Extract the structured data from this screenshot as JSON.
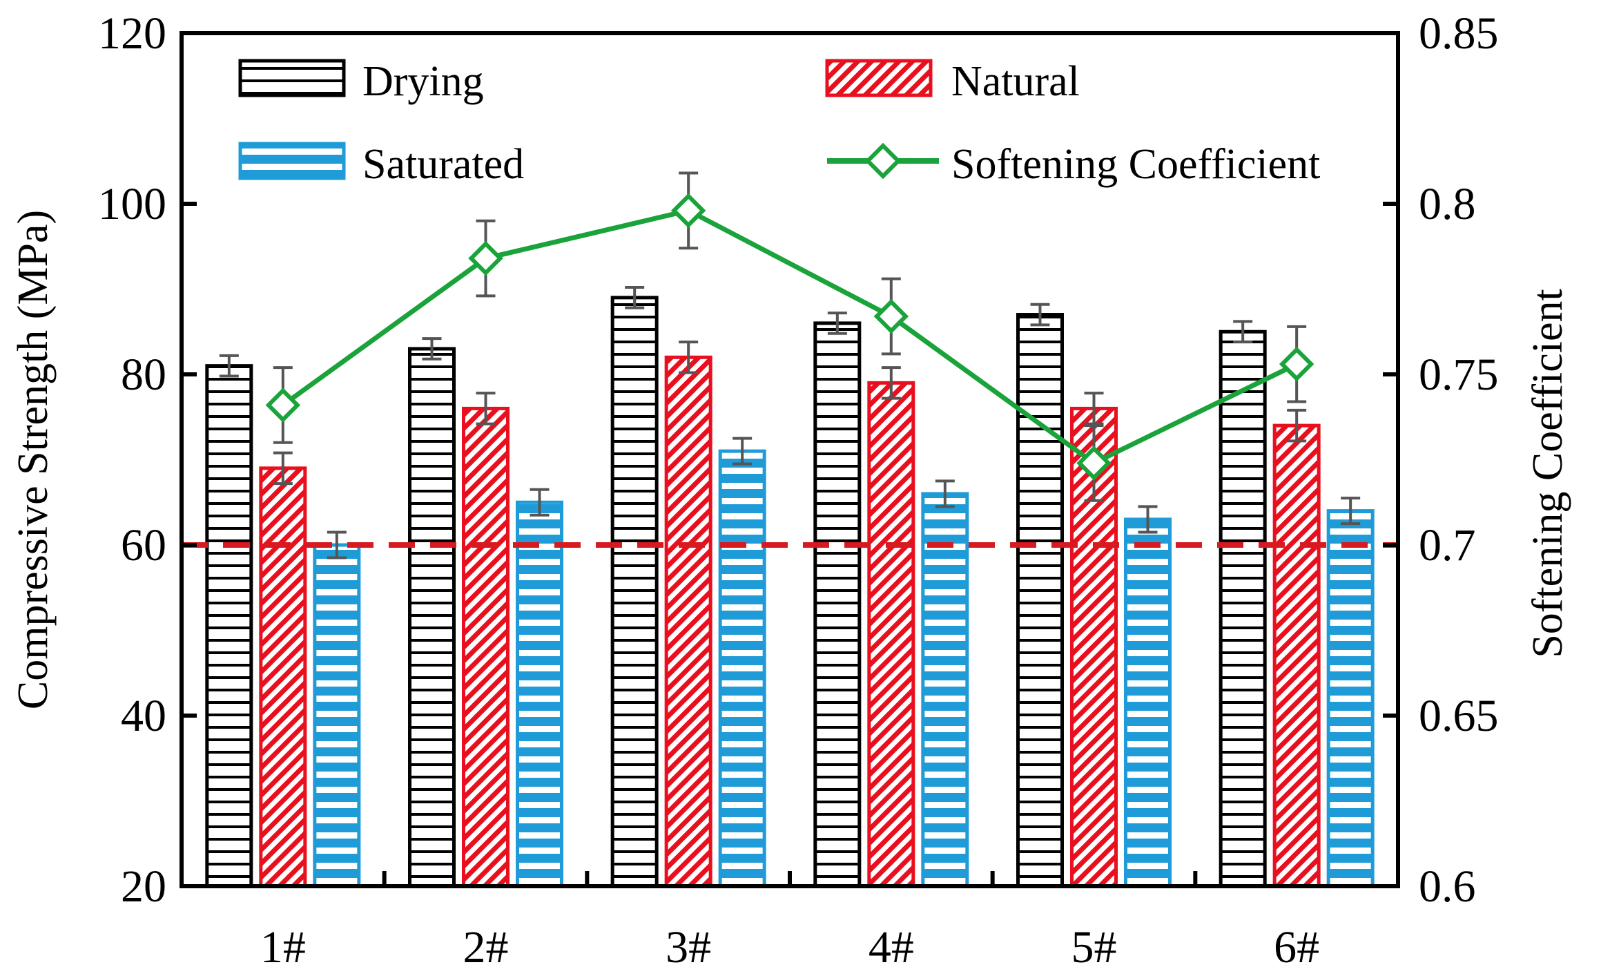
{
  "chart_data": {
    "type": "bar",
    "categories": [
      "1#",
      "2#",
      "3#",
      "4#",
      "5#",
      "6#"
    ],
    "ylabel": "Compressive Strength (MPa)",
    "y2label": "Softening Coefficient",
    "ylim": [
      20,
      120
    ],
    "yticks": [
      "20",
      "40",
      "60",
      "80",
      "100",
      "120"
    ],
    "y2lim": [
      0.6,
      0.85
    ],
    "y2ticks": [
      "0.6",
      "0.65",
      "0.7",
      "0.75",
      "0.8",
      "0.85"
    ],
    "series": [
      {
        "name": "Drying",
        "values": [
          81,
          83,
          89,
          86,
          87,
          85
        ],
        "errors": [
          1.2,
          1.2,
          1.2,
          1.2,
          1.2,
          1.2
        ],
        "color": "#000000",
        "pattern": "horizontal-lines"
      },
      {
        "name": "Natural",
        "values": [
          69,
          76,
          82,
          79,
          76,
          74
        ],
        "errors": [
          1.8,
          1.8,
          1.8,
          1.8,
          1.8,
          1.8
        ],
        "color": "#e8101e",
        "pattern": "diagonal-hatch"
      },
      {
        "name": "Saturated",
        "values": [
          60,
          65,
          71,
          66,
          63,
          64
        ],
        "errors": [
          1.5,
          1.5,
          1.5,
          1.5,
          1.5,
          1.5
        ],
        "color": "#1f9bd7",
        "pattern": "horizontal-bands"
      }
    ],
    "line_series": {
      "name": "Softening Coefficient",
      "axis": "right",
      "values": [
        0.741,
        0.784,
        0.798,
        0.767,
        0.724,
        0.753
      ],
      "errors": [
        0.011,
        0.011,
        0.011,
        0.011,
        0.011,
        0.011
      ],
      "color": "#1aa33a",
      "marker": "diamond"
    },
    "reference_line": {
      "axis": "right",
      "value": 0.7,
      "color": "#d61a1f",
      "style": "dashed"
    },
    "legend": {
      "position": "top",
      "columns": 2
    },
    "grid": false
  }
}
